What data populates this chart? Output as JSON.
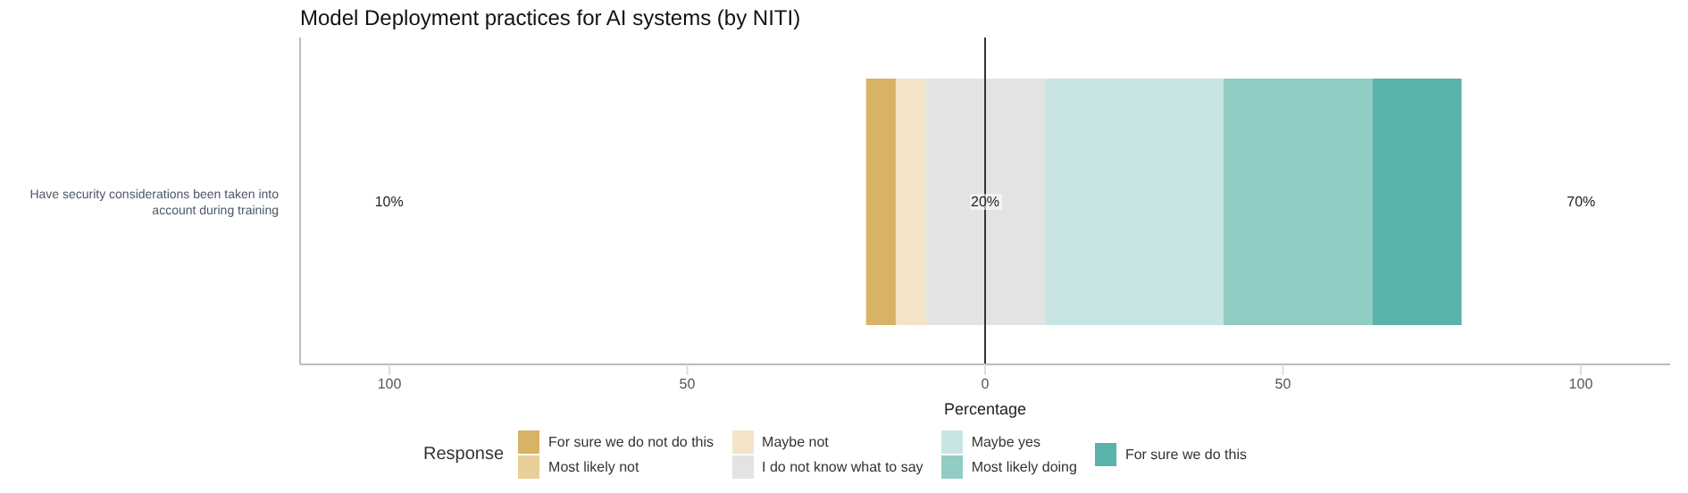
{
  "chart_data": {
    "type": "bar",
    "orientation": "horizontal",
    "title": "Model Deployment practices for AI systems (by NITI)",
    "xlabel": "Percentage",
    "legend_title": "Response",
    "categories": [
      "Have security considerations been taken into account during training"
    ],
    "series": [
      {
        "name": "For sure we do not do this",
        "color": "#d9b365",
        "values": [
          5
        ],
        "base": [
          -20
        ]
      },
      {
        "name": "Most likely not",
        "color": "#e8cf98",
        "values": [
          null
        ],
        "base": [
          null
        ]
      },
      {
        "name": "Maybe not",
        "color": "#f3e4c8",
        "values": [
          5
        ],
        "base": [
          -15
        ]
      },
      {
        "name": "I do not know what to say",
        "color": "#e3e3e3",
        "values": [
          20
        ],
        "base": [
          -10
        ]
      },
      {
        "name": "Maybe yes",
        "color": "#c8e5e3",
        "values": [
          30
        ],
        "base": [
          10
        ]
      },
      {
        "name": "Most likely doing",
        "color": "#91ccc5",
        "values": [
          25
        ],
        "base": [
          40
        ]
      },
      {
        "name": "For sure we do this",
        "color": "#5ab3aa",
        "values": [
          15
        ],
        "base": [
          65
        ]
      }
    ],
    "xlim": [
      -115,
      115
    ],
    "xticks": [
      {
        "value": -100,
        "label": "100"
      },
      {
        "value": -50,
        "label": "50"
      },
      0,
      50,
      100
    ],
    "ref_lines": [
      {
        "axis": "x",
        "value": 0,
        "color": "#333333"
      }
    ],
    "annotations": [
      "10%",
      "20%",
      "70%"
    ],
    "legend": "bottom",
    "grid": false
  }
}
